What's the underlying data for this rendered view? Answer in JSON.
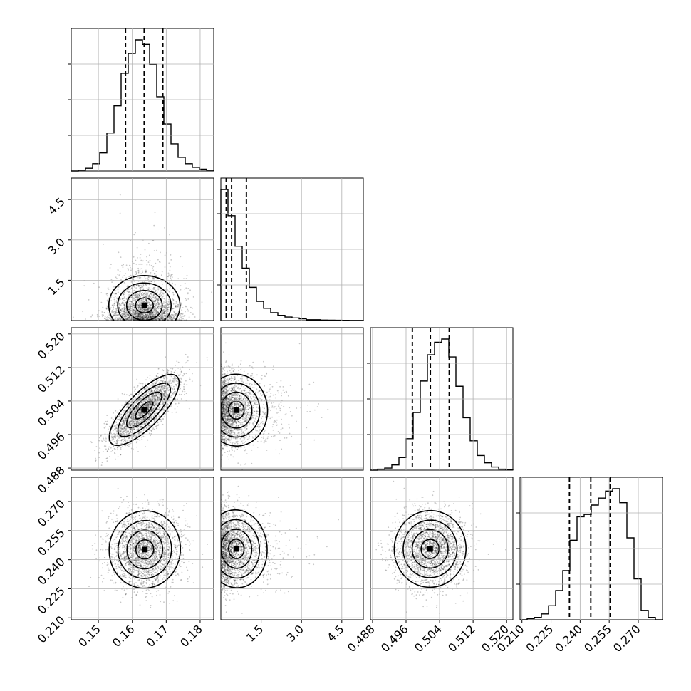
{
  "chart_data": {
    "type": "corner",
    "parameters": [
      {
        "id": "p1",
        "range": [
          0.142,
          0.184
        ],
        "ticks": [
          0.15,
          0.16,
          0.17,
          0.18
        ],
        "tick_labels": [
          "0.15",
          "0.16",
          "0.17",
          "0.18"
        ],
        "quantiles": [
          0.158,
          0.1635,
          0.169
        ],
        "center": 0.1635,
        "sigma": 0.0052
      },
      {
        "id": "p2",
        "range": [
          0.0,
          5.3
        ],
        "ticks": [
          1.5,
          3.0,
          4.5
        ],
        "tick_labels": [
          "1.5",
          "3.0",
          "4.5"
        ],
        "quantiles": [
          0.2,
          0.4,
          0.95
        ]
      },
      {
        "id": "p3",
        "range": [
          0.4875,
          0.5215
        ],
        "ticks": [
          0.488,
          0.496,
          0.504,
          0.512,
          0.52
        ],
        "tick_labels": [
          "0.488",
          "0.496",
          "0.504",
          "0.512",
          "0.520"
        ],
        "quantiles": [
          0.4975,
          0.5018,
          0.5063
        ],
        "center": 0.5018,
        "sigma": 0.0042
      },
      {
        "id": "p4",
        "range": [
          0.209,
          0.2825
        ],
        "ticks": [
          0.21,
          0.225,
          0.24,
          0.255,
          0.27
        ],
        "tick_labels": [
          "0.210",
          "0.225",
          "0.240",
          "0.255",
          "0.270"
        ],
        "quantiles": [
          0.2345,
          0.2455,
          0.2555
        ]
      }
    ],
    "histograms": [
      {
        "param": "p1",
        "edges_start": 0.142,
        "bin_width": 0.0021,
        "counts": [
          0,
          1,
          3,
          8,
          20,
          42,
          72,
          108,
          130,
          145,
          140,
          118,
          82,
          52,
          30,
          15,
          8,
          4,
          2,
          1
        ]
      },
      {
        "param": "p2",
        "edges_start": 0.0,
        "bin_width": 0.265,
        "counts": [
          150,
          120,
          85,
          60,
          38,
          22,
          14,
          9,
          6,
          4,
          3,
          2,
          1,
          1,
          0.6,
          0.4,
          0.3,
          0.2,
          0.1,
          0.1
        ]
      },
      {
        "param": "p3",
        "edges_start": 0.4875,
        "bin_width": 0.0017,
        "counts": [
          0,
          1,
          2,
          5,
          12,
          30,
          55,
          85,
          110,
          122,
          125,
          108,
          80,
          50,
          28,
          14,
          7,
          3,
          1,
          0.5
        ]
      },
      {
        "param": "p4",
        "edges_start": 0.209,
        "bin_width": 0.003675,
        "counts": [
          0,
          1,
          2,
          5,
          12,
          25,
          42,
          68,
          88,
          90,
          98,
          104,
          110,
          112,
          100,
          70,
          35,
          8,
          2,
          0
        ]
      }
    ],
    "panels_2d": [
      {
        "x": "p1",
        "y": "p2"
      },
      {
        "x": "p1",
        "y": "p3"
      },
      {
        "x": "p2",
        "y": "p3"
      },
      {
        "x": "p1",
        "y": "p4"
      },
      {
        "x": "p2",
        "y": "p4"
      },
      {
        "x": "p3",
        "y": "p4"
      }
    ],
    "grid": true,
    "legend": "none",
    "xlabel": "",
    "ylabel": "",
    "title": ""
  }
}
